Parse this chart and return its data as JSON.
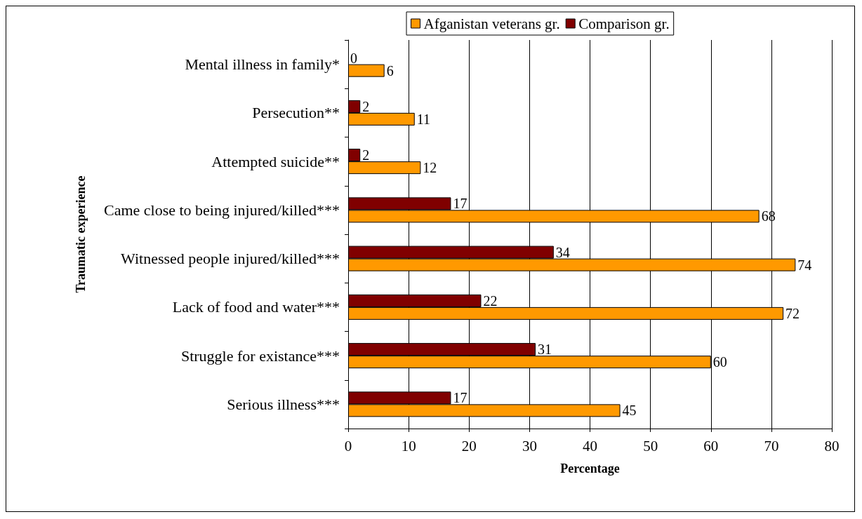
{
  "chart_data": {
    "type": "bar",
    "orientation": "horizontal",
    "xlabel": "Percentage",
    "ylabel": "Traumatic experience",
    "categories": [
      "Mental illness in family*",
      "Persecution**",
      "Attempted suicide**",
      "Came close to being injured/killed***",
      "Witnessed people injured/killed***",
      "Lack of food and water***",
      "Struggle for existance***",
      "Serious illness***"
    ],
    "series": [
      {
        "name": "Afganistan veterans gr.",
        "color": "#ff9900",
        "values": [
          6,
          11,
          12,
          68,
          74,
          72,
          60,
          45
        ]
      },
      {
        "name": "Comparison gr.",
        "color": "#800000",
        "values": [
          0,
          2,
          2,
          17,
          34,
          22,
          31,
          17
        ]
      }
    ],
    "xlim": [
      0,
      80
    ],
    "xticks": [
      0,
      10,
      20,
      30,
      40,
      50,
      60,
      70,
      80
    ],
    "grid": "x",
    "legend": "top",
    "data_labels": true
  }
}
